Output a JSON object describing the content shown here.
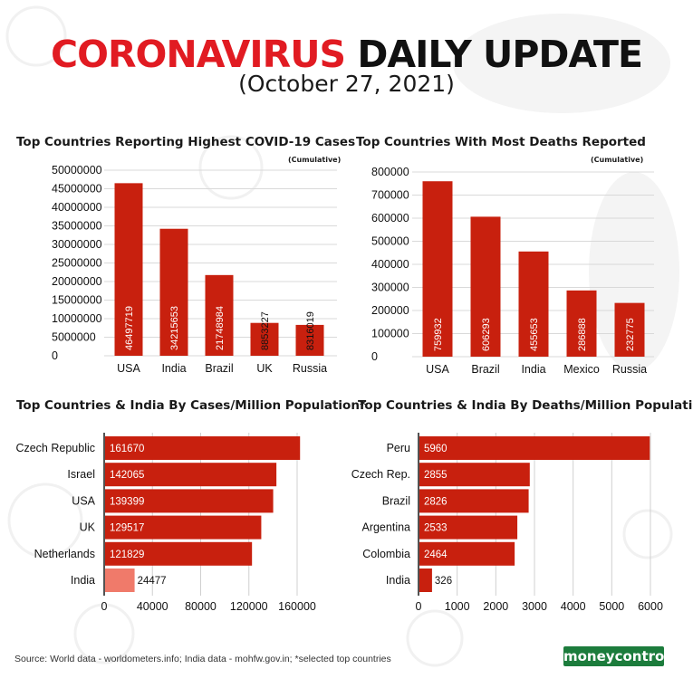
{
  "header": {
    "title_red": "CORONAVIRUS",
    "title_black": "DAILY UPDATE",
    "date": "(October 27, 2021)"
  },
  "colors": {
    "bar": "#c8200e",
    "india_highlight": "#f07a6a",
    "title_red": "#e11b22",
    "logo_green": "#1c7c3c"
  },
  "chart_data": [
    {
      "type": "bar",
      "title": "Top Countries Reporting Highest COVID-19 Cases",
      "note": "(Cumulative)",
      "categories": [
        "USA",
        "India",
        "Brazil",
        "UK",
        "Russia"
      ],
      "values": [
        46497719,
        34215653,
        21748984,
        8853227,
        8316019
      ],
      "ylim": [
        0,
        50000000
      ],
      "yticks": [
        "50000000",
        "45000000",
        "40000000",
        "35000000",
        "30000000",
        "25000000",
        "20000000",
        "15000000",
        "10000000",
        "5000000",
        "0"
      ],
      "grid": true
    },
    {
      "type": "bar",
      "title": "Top Countries With Most Deaths Reported",
      "note": "(Cumulative)",
      "categories": [
        "USA",
        "Brazil",
        "India",
        "Mexico",
        "Russia"
      ],
      "values": [
        759932,
        606293,
        455653,
        286888,
        232775
      ],
      "ylim": [
        0,
        800000
      ],
      "yticks": [
        "800000",
        "700000",
        "600000",
        "500000",
        "400000",
        "300000",
        "200000",
        "100000",
        "0"
      ],
      "grid": true
    },
    {
      "type": "bar",
      "orientation": "horizontal",
      "title": "Top Countries & India By Cases/Million Population*",
      "categories": [
        "Czech Republic",
        "Israel",
        "USA",
        "UK",
        "Netherlands",
        "India"
      ],
      "values": [
        161670,
        142065,
        139399,
        129517,
        121829,
        24477
      ],
      "xlim": [
        0,
        160000
      ],
      "xticks": [
        "0",
        "40000",
        "80000",
        "120000",
        "160000"
      ],
      "highlight": "India",
      "grid": true
    },
    {
      "type": "bar",
      "orientation": "horizontal",
      "title": "Top Countries & India By Deaths/Million Population*",
      "categories": [
        "Peru",
        "Czech Rep.",
        "Brazil",
        "Argentina",
        "Colombia",
        "India"
      ],
      "values": [
        5960,
        2855,
        2826,
        2533,
        2464,
        326
      ],
      "xlim": [
        0,
        6000
      ],
      "xticks": [
        "0",
        "1000",
        "2000",
        "3000",
        "4000",
        "5000",
        "6000"
      ],
      "grid": true
    }
  ],
  "footer": {
    "source": "Source: World data - worldometers.info; India data - mohfw.gov.in; *selected top countries",
    "logo_a": "money",
    "logo_b": "control"
  }
}
